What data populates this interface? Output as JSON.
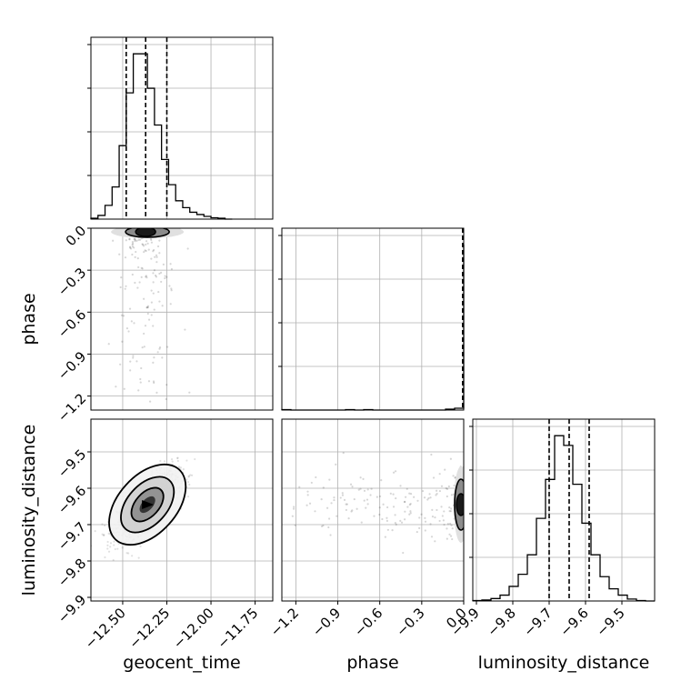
{
  "chart_data": {
    "type": "corner",
    "grid": true,
    "parameters": [
      {
        "name": "geocent_time",
        "xlim": [
          -12.68,
          -11.65
        ],
        "ylim": [
          -9.91,
          -9.41
        ],
        "ticks": [
          -12.5,
          -12.25,
          -12.0,
          -11.75
        ],
        "tick_labels": [
          "−12.50",
          "−12.25",
          "−12.00",
          "−11.75"
        ],
        "quantiles": [
          -12.48,
          -12.37,
          -12.25
        ]
      },
      {
        "name": "phase",
        "xlim": [
          -1.3,
          0.0
        ],
        "ylim": [
          -1.3,
          0.0
        ],
        "ticks": [
          -1.2,
          -0.9,
          -0.6,
          -0.3,
          0.0
        ],
        "tick_labels": [
          "−1.2",
          "−0.9",
          "−0.6",
          "−0.3",
          "0.0"
        ],
        "quantiles": [
          -0.005,
          -0.002,
          0.0
        ]
      },
      {
        "name": "luminosity_distance",
        "xlim": [
          -9.91,
          -9.41
        ],
        "ylim": [
          -9.91,
          -9.41
        ],
        "ticks": [
          -9.9,
          -9.8,
          -9.7,
          -9.6,
          -9.5
        ],
        "tick_labels": [
          "−9.9",
          "−9.8",
          "−9.7",
          "−9.6",
          "−9.5"
        ],
        "quantiles": [
          -9.7,
          -9.645,
          -9.59
        ]
      }
    ],
    "hist_geocent_time": {
      "edges": [
        -12.68,
        -12.64,
        -12.6,
        -12.56,
        -12.52,
        -12.48,
        -12.44,
        -12.4,
        -12.36,
        -12.32,
        -12.28,
        -12.24,
        -12.2,
        -12.16,
        -12.12,
        -12.08,
        -12.04,
        -12.0,
        -11.96,
        -11.92,
        -11.88
      ],
      "counts": [
        2,
        8,
        30,
        70,
        160,
        275,
        360,
        360,
        285,
        205,
        130,
        75,
        40,
        25,
        15,
        10,
        6,
        3,
        2,
        0
      ]
    },
    "hist_phase": {
      "edges": [
        -1.3,
        -1.235,
        -1.17,
        -1.105,
        -1.04,
        -0.975,
        -0.91,
        -0.845,
        -0.78,
        -0.715,
        -0.65,
        -0.585,
        -0.52,
        -0.455,
        -0.39,
        -0.325,
        -0.26,
        -0.195,
        -0.13,
        -0.065,
        0.0
      ],
      "counts": [
        1,
        0,
        0,
        0,
        0,
        0,
        0,
        1,
        0,
        1,
        0,
        0,
        0,
        0,
        0,
        0,
        0,
        0,
        2,
        4,
        360
      ]
    },
    "hist_luminosity_distance": {
      "edges": [
        -9.91,
        -9.885,
        -9.86,
        -9.835,
        -9.81,
        -9.785,
        -9.76,
        -9.735,
        -9.71,
        -9.685,
        -9.66,
        -9.635,
        -9.61,
        -9.585,
        -9.56,
        -9.535,
        -9.51,
        -9.485,
        -9.46,
        -9.435,
        -9.41
      ],
      "counts": [
        1,
        2,
        5,
        12,
        30,
        55,
        95,
        170,
        250,
        340,
        320,
        240,
        160,
        95,
        50,
        25,
        12,
        4,
        1,
        0
      ]
    },
    "posterior_center": {
      "geocent_time": -12.36,
      "phase": -0.01,
      "luminosity_distance": -9.645
    }
  }
}
